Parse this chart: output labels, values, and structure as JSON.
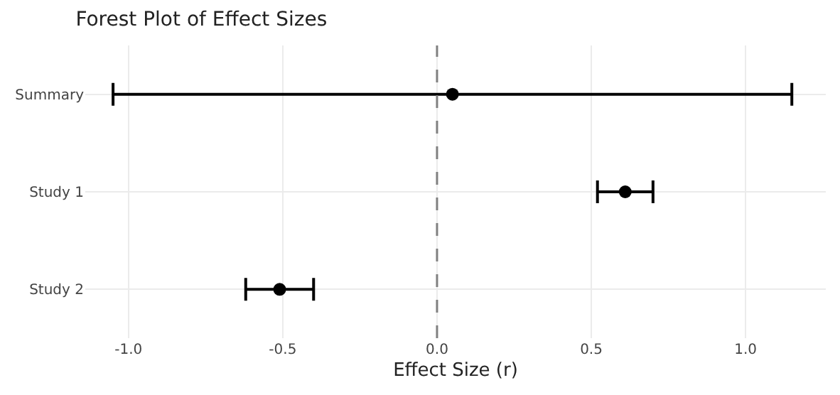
{
  "chart_data": {
    "type": "scatter",
    "title": "Forest Plot of Effect Sizes",
    "xlabel": "Effect Size (r)",
    "orientation": "horizontal",
    "categories": [
      "Summary",
      "Study 1",
      "Study 2"
    ],
    "values": [
      0.05,
      0.61,
      -0.51
    ],
    "errors": [
      [
        -1.05,
        1.15
      ],
      [
        0.52,
        0.7
      ],
      [
        -0.62,
        -0.4
      ]
    ],
    "color": "#000000",
    "marker": "circle",
    "xlim": [
      -1.14,
      1.26
    ],
    "xticks": [
      {
        "value": -1,
        "label": "-1.0"
      },
      {
        "value": -0.5,
        "label": "-0.5"
      },
      {
        "value": 0,
        "label": "0.0"
      },
      {
        "value": 0.5,
        "label": "0.5"
      },
      {
        "value": 1,
        "label": "1.0"
      }
    ],
    "ref_lines": [
      {
        "axis": "x",
        "value": 0,
        "color": "#808080",
        "line_style": "dashed"
      }
    ],
    "grid": true
  }
}
